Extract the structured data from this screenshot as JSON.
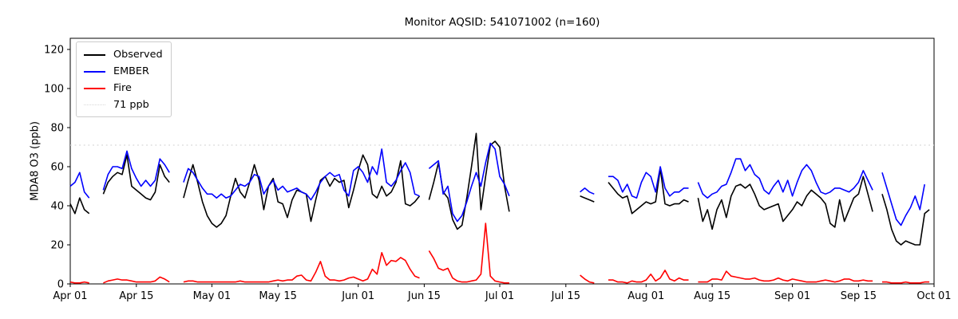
{
  "title": "Monitor AQSID: 541071002 (n=160)",
  "y_axis": {
    "label": "MDA8 O3 (ppb)",
    "ticks": [
      0,
      20,
      40,
      60,
      80,
      100,
      120
    ]
  },
  "x_axis": {
    "ticks": [
      {
        "day": 0,
        "label": "Apr 01"
      },
      {
        "day": 14,
        "label": "Apr 15"
      },
      {
        "day": 30,
        "label": "May 01"
      },
      {
        "day": 44,
        "label": "May 15"
      },
      {
        "day": 61,
        "label": "Jun 01"
      },
      {
        "day": 75,
        "label": "Jun 15"
      },
      {
        "day": 91,
        "label": "Jul 01"
      },
      {
        "day": 105,
        "label": "Jul 15"
      },
      {
        "day": 122,
        "label": "Aug 01"
      },
      {
        "day": 136,
        "label": "Aug 15"
      },
      {
        "day": 153,
        "label": "Sep 01"
      },
      {
        "day": 167,
        "label": "Sep 15"
      },
      {
        "day": 183,
        "label": "Oct 01"
      }
    ]
  },
  "threshold": {
    "value": 71,
    "label": "71 ppb",
    "color": "#d8d8d8"
  },
  "legend": {
    "entries": [
      {
        "label": "Observed",
        "color": "#000000",
        "style": "solid"
      },
      {
        "label": "EMBER",
        "color": "#0000ff",
        "style": "solid"
      },
      {
        "label": "Fire",
        "color": "#ff0000",
        "style": "solid"
      },
      {
        "label": "71 ppb",
        "color": "#d8d8d8",
        "style": "dotted"
      }
    ]
  },
  "chart_data": {
    "type": "line",
    "title": "Monitor AQSID: 541071002 (n=160)",
    "xlabel": "",
    "ylabel": "MDA8 O3 (ppb)",
    "x_start": "Apr 01",
    "x_end": "Oct 01",
    "x_unit": "day",
    "days": 183,
    "n_observations": 160,
    "ylim": [
      0,
      126
    ],
    "grid": false,
    "legend_position": "upper left",
    "threshold_line": {
      "value": 71,
      "label": "71 ppb",
      "style": "dotted",
      "color": "#d8d8d8"
    },
    "note": "Daily values Apr 01 - Sep 30; null = missing observation day",
    "series": [
      {
        "name": "Observed",
        "color": "#000000",
        "values": [
          41,
          36,
          44,
          38,
          36,
          null,
          null,
          46,
          52,
          55,
          57,
          56,
          66,
          50,
          48,
          46,
          44,
          43,
          47,
          61,
          55,
          52,
          null,
          null,
          44,
          53,
          61,
          52,
          42,
          35,
          31,
          29,
          31,
          35,
          45,
          54,
          47,
          44,
          52,
          61,
          53,
          38,
          50,
          54,
          42,
          41,
          34,
          43,
          48,
          47,
          46,
          32,
          43,
          53,
          55,
          50,
          54,
          52,
          53,
          39,
          48,
          58,
          66,
          61,
          46,
          44,
          50,
          45,
          47,
          52,
          63,
          41,
          40,
          42,
          45,
          null,
          43,
          52,
          62,
          47,
          44,
          33,
          28,
          30,
          44,
          60,
          77,
          38,
          55,
          71,
          73,
          70,
          50,
          37,
          null,
          null,
          null,
          null,
          null,
          null,
          null,
          null,
          null,
          null,
          null,
          null,
          null,
          null,
          45,
          44,
          43,
          42,
          null,
          null,
          52,
          49,
          46,
          44,
          45,
          36,
          38,
          40,
          42,
          41,
          42,
          59,
          41,
          40,
          41,
          41,
          43,
          42,
          null,
          44,
          32,
          38,
          28,
          38,
          43,
          34,
          45,
          50,
          51,
          49,
          51,
          46,
          40,
          38,
          39,
          40,
          41,
          32,
          35,
          38,
          42,
          40,
          45,
          48,
          46,
          44,
          41,
          31,
          29,
          43,
          32,
          38,
          44,
          46,
          55,
          46,
          37,
          null,
          46,
          38,
          28,
          22,
          20,
          22,
          21,
          20,
          20,
          36,
          38
        ]
      },
      {
        "name": "EMBER",
        "color": "#0000ff",
        "values": [
          50,
          52,
          57,
          47,
          44,
          null,
          null,
          48,
          56,
          60,
          60,
          59,
          68,
          59,
          54,
          50,
          53,
          50,
          53,
          64,
          61,
          57,
          null,
          null,
          52,
          59,
          57,
          53,
          49,
          46,
          46,
          44,
          46,
          44,
          45,
          48,
          51,
          50,
          52,
          56,
          55,
          46,
          50,
          53,
          48,
          50,
          47,
          48,
          49,
          47,
          46,
          43,
          47,
          52,
          55,
          57,
          55,
          56,
          48,
          45,
          58,
          60,
          57,
          52,
          60,
          56,
          69,
          52,
          50,
          53,
          58,
          62,
          57,
          46,
          45,
          null,
          59,
          61,
          63,
          46,
          50,
          36,
          32,
          35,
          42,
          50,
          57,
          50,
          62,
          72,
          69,
          55,
          51,
          45,
          null,
          null,
          null,
          null,
          null,
          null,
          null,
          null,
          null,
          null,
          null,
          null,
          null,
          null,
          47,
          49,
          47,
          46,
          null,
          null,
          55,
          55,
          53,
          47,
          51,
          45,
          44,
          52,
          57,
          55,
          47,
          60,
          49,
          45,
          47,
          47,
          49,
          49,
          null,
          52,
          46,
          44,
          46,
          47,
          50,
          51,
          57,
          64,
          64,
          58,
          61,
          56,
          54,
          48,
          46,
          50,
          53,
          47,
          53,
          45,
          52,
          58,
          61,
          58,
          52,
          47,
          46,
          47,
          49,
          49,
          48,
          47,
          49,
          52,
          58,
          53,
          48,
          null,
          57,
          49,
          41,
          33,
          30,
          35,
          39,
          45,
          38,
          51,
          null
        ]
      },
      {
        "name": "Fire",
        "color": "#ff0000",
        "values": [
          1,
          0.5,
          0.5,
          1,
          0.5,
          null,
          null,
          0.5,
          1.5,
          2,
          2.5,
          2,
          2,
          1.5,
          1,
          1,
          1,
          1,
          1.5,
          3.5,
          2.5,
          1,
          null,
          null,
          1,
          1.5,
          1.5,
          1,
          1,
          1,
          1,
          1,
          1,
          1,
          1,
          1,
          1.5,
          1,
          1,
          1,
          1,
          1,
          1,
          1.5,
          2,
          1.5,
          2,
          2,
          4,
          4.5,
          2,
          1.5,
          6,
          11.5,
          4,
          2,
          2,
          1.5,
          2,
          3,
          3.5,
          2.5,
          1.5,
          2.5,
          7.5,
          5,
          16,
          9.5,
          12,
          11.5,
          13.5,
          12,
          7.5,
          4,
          3,
          null,
          17,
          13,
          8,
          7,
          8,
          3,
          1.5,
          1,
          1,
          1.5,
          2,
          5,
          31,
          4,
          1.5,
          1,
          0.5,
          0.5,
          null,
          null,
          null,
          null,
          null,
          null,
          null,
          null,
          null,
          null,
          null,
          null,
          null,
          null,
          4.5,
          2.5,
          1,
          0.5,
          null,
          null,
          2,
          2,
          1,
          1,
          0.5,
          1.5,
          1,
          1,
          2,
          5,
          1.5,
          3,
          7,
          2.5,
          1.5,
          3,
          2,
          2,
          null,
          1,
          1,
          1,
          2.5,
          2.5,
          2,
          6.5,
          4,
          3.5,
          3,
          2.5,
          2.5,
          3,
          2,
          1.5,
          1.5,
          2,
          3,
          2,
          1.5,
          2.5,
          2,
          1.5,
          1,
          1,
          1,
          1.5,
          2,
          1.5,
          1,
          1.5,
          2.5,
          2.5,
          1.5,
          1.5,
          2,
          1.5,
          1.5,
          null,
          1,
          1,
          0.5,
          0.5,
          0.5,
          1,
          0.5,
          0.5,
          0.5,
          1,
          1
        ]
      }
    ]
  }
}
